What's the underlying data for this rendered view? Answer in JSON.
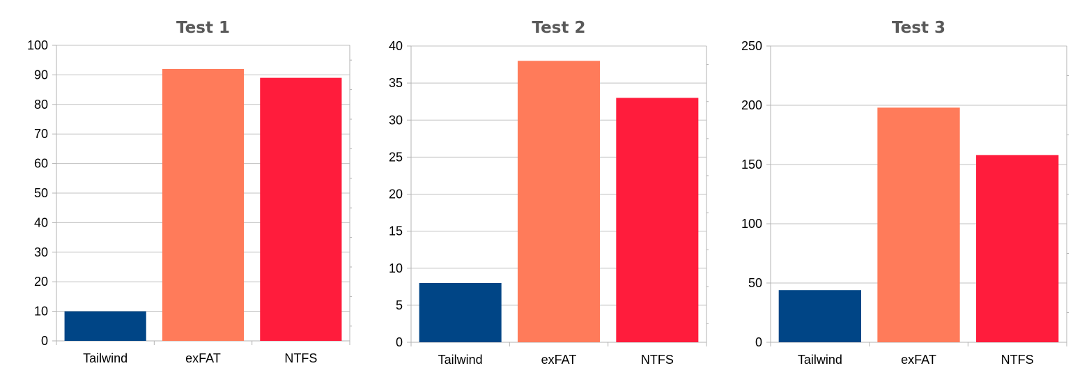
{
  "chart_data": [
    {
      "type": "bar",
      "title": "Test 1",
      "categories": [
        "Tailwind",
        "exFAT",
        "NTFS"
      ],
      "values": [
        10,
        92,
        89
      ],
      "ylim": [
        0,
        100
      ],
      "yticks": [
        "0",
        "10",
        "20",
        "30",
        "40",
        "50",
        "60",
        "70",
        "80",
        "90",
        "100"
      ],
      "grid": true,
      "legend": "none"
    },
    {
      "type": "bar",
      "title": "Test 2",
      "categories": [
        "Tailwind",
        "exFAT",
        "NTFS"
      ],
      "values": [
        8,
        38,
        33
      ],
      "ylim": [
        0,
        40
      ],
      "yticks": [
        "0",
        "5",
        "10",
        "15",
        "20",
        "25",
        "30",
        "35",
        "40"
      ],
      "grid": true,
      "legend": "none"
    },
    {
      "type": "bar",
      "title": "Test 3",
      "categories": [
        "Tailwind",
        "exFAT",
        "NTFS"
      ],
      "values": [
        44,
        198,
        158
      ],
      "ylim": [
        0,
        250
      ],
      "yticks": [
        "0",
        "50",
        "100",
        "150",
        "200",
        "250"
      ],
      "grid": true,
      "legend": "none"
    }
  ],
  "colors": {
    "Tailwind": "#004586",
    "exFAT": "#ff7b5a",
    "NTFS": "#ff1c3c",
    "grid": "#c0c0c0",
    "axis": "#b3b3b3",
    "title": "#595959"
  }
}
